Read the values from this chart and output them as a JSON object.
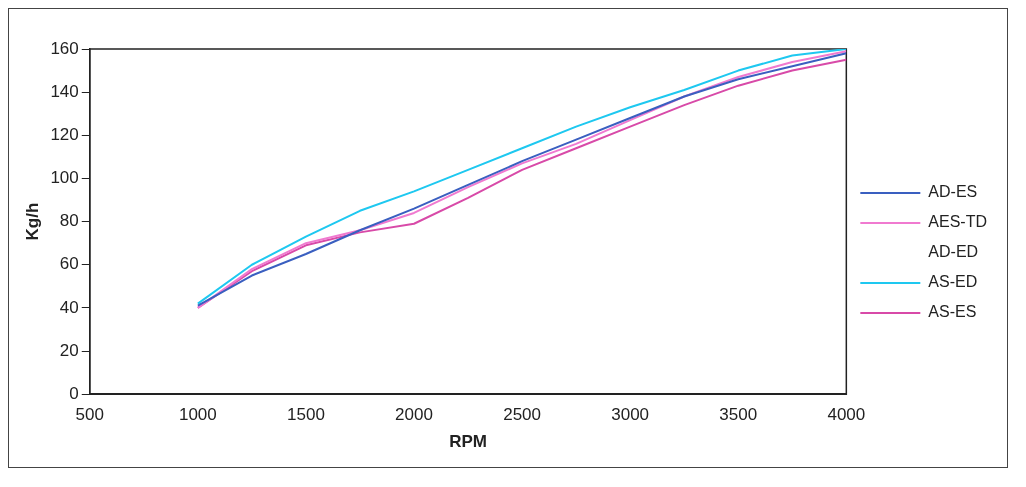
{
  "chart_data": {
    "type": "line",
    "xlabel": "RPM",
    "ylabel": "Kg/h",
    "x": [
      1000,
      1250,
      1500,
      1750,
      2000,
      2250,
      2500,
      2750,
      3000,
      3250,
      3500,
      3750,
      4000
    ],
    "series": [
      {
        "name": "AD-ES",
        "color": "#3a5fc0",
        "values": [
          41,
          55,
          65,
          76,
          86,
          97,
          108,
          118,
          128,
          138,
          146,
          152,
          158
        ]
      },
      {
        "name": "AES-TD",
        "color": "#f07ad0",
        "values": [
          40,
          58,
          70,
          76,
          84,
          96,
          107,
          116,
          127,
          138,
          147,
          154,
          159
        ]
      },
      {
        "name": "AD-ED",
        "values": [
          null,
          null,
          null,
          null,
          null,
          null,
          null,
          null,
          null,
          null,
          null,
          null,
          null
        ]
      },
      {
        "name": "AS-ED",
        "color": "#1ec8f0",
        "values": [
          42,
          60,
          73,
          85,
          94,
          104,
          114,
          124,
          133,
          141,
          150,
          157,
          160
        ]
      },
      {
        "name": "AS-ES",
        "color": "#d84aa8",
        "values": [
          40,
          57,
          69,
          75,
          79,
          91,
          104,
          114,
          124,
          134,
          143,
          150,
          155
        ]
      }
    ],
    "xlim": [
      500,
      4000
    ],
    "xticks": [
      500,
      1000,
      1500,
      2000,
      2500,
      3000,
      3500,
      4000
    ],
    "ylim": [
      0,
      160
    ],
    "yticks": [
      0,
      20,
      40,
      60,
      80,
      100,
      120,
      140,
      160
    ],
    "grid": false,
    "legend": "right",
    "marker": "none",
    "line_style": "solid"
  }
}
